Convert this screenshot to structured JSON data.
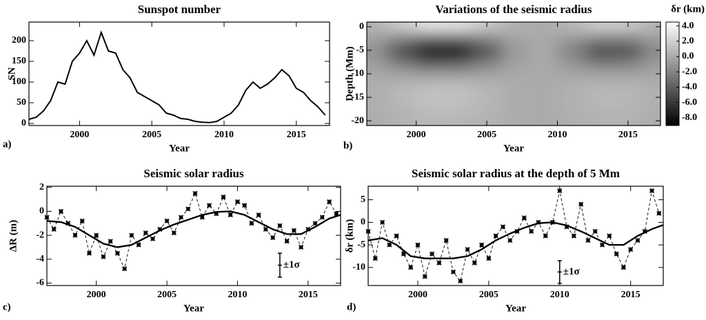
{
  "chart_data": [
    {
      "type": "line",
      "title": "Sunspot number",
      "panel_label": "a)",
      "xlabel": "Year",
      "ylabel": "SN",
      "xlim": [
        1996.5,
        2017.3
      ],
      "ylim": [
        -5,
        245
      ],
      "xticks": [
        2000,
        2005,
        2010,
        2015
      ],
      "yticks": [
        0,
        50,
        100,
        150,
        200
      ],
      "color": "#000000",
      "x": [
        1996.5,
        1997,
        1997.5,
        1998,
        1998.5,
        1999,
        1999.5,
        2000,
        2000.5,
        2001,
        2001.5,
        2002,
        2002.5,
        2003,
        2003.5,
        2004,
        2004.5,
        2005,
        2005.5,
        2006,
        2006.5,
        2007,
        2007.5,
        2008,
        2008.5,
        2009,
        2009.5,
        2010,
        2010.5,
        2011,
        2011.5,
        2012,
        2012.5,
        2013,
        2013.5,
        2014,
        2014.5,
        2015,
        2015.5,
        2016,
        2016.5,
        2017
      ],
      "values": [
        10,
        15,
        30,
        55,
        100,
        95,
        150,
        170,
        200,
        165,
        220,
        175,
        170,
        130,
        110,
        75,
        65,
        55,
        45,
        25,
        20,
        12,
        10,
        5,
        3,
        2,
        5,
        15,
        25,
        45,
        80,
        100,
        85,
        95,
        110,
        130,
        115,
        85,
        75,
        55,
        40,
        20
      ]
    },
    {
      "type": "heatmap",
      "title": "Variations of the seismic radius",
      "panel_label": "b)",
      "xlabel": "Year",
      "ylabel": "Depth (Mm)",
      "colorbar_label": "δr (km)",
      "colormap": "gray",
      "clim": [
        -9,
        4.5
      ],
      "colorbar_ticks": [
        {
          "value": 4,
          "label": "4.0"
        },
        {
          "value": 2,
          "label": "2.0"
        },
        {
          "value": 0,
          "label": "0.0"
        },
        {
          "value": -2,
          "label": "-2.0"
        },
        {
          "value": -4,
          "label": "-4.0"
        },
        {
          "value": -6,
          "label": "-6.0"
        },
        {
          "value": -8,
          "label": "-8.0"
        }
      ],
      "xlim": [
        1996.5,
        2017.3
      ],
      "ylim": [
        -21,
        1
      ],
      "xticks": [
        2000,
        2005,
        2010,
        2015
      ],
      "yticks": [
        0,
        -5,
        -10,
        -15,
        -20
      ],
      "x": [
        1997,
        1999,
        2001,
        2003,
        2005,
        2007,
        2009,
        2011,
        2013,
        2015,
        2017
      ],
      "y": [
        0,
        -2.5,
        -5,
        -7.5,
        -10,
        -12.5,
        -15,
        -17.5,
        -20
      ],
      "values": [
        [
          0.4,
          1.8,
          3.0,
          2.8,
          1.6,
          0.3,
          0,
          0.7,
          1.8,
          1.6,
          0.6
        ],
        [
          -0.5,
          -2.0,
          -3.4,
          -3.2,
          -1.9,
          -0.3,
          0,
          -0.9,
          -2.0,
          -1.9,
          -0.7
        ],
        [
          -1.3,
          -5.1,
          -8.5,
          -8.1,
          -4.7,
          -0.9,
          0,
          -2.1,
          -5.1,
          -4.7,
          -1.7
        ],
        [
          -0.7,
          -2.8,
          -4.7,
          -4.4,
          -2.6,
          -0.5,
          0,
          -1.2,
          -2.8,
          -2.6,
          -0.9
        ],
        [
          -0.1,
          -0.5,
          -0.9,
          -0.8,
          -0.5,
          -0.1,
          0,
          -0.2,
          -0.5,
          -0.5,
          -0.2
        ],
        [
          0.2,
          0.6,
          1.0,
          1.0,
          0.6,
          0.1,
          0,
          0.3,
          0.6,
          0.6,
          0.2
        ],
        [
          0.2,
          0.8,
          1.3,
          1.2,
          0.7,
          0.1,
          0,
          0.3,
          0.8,
          0.7,
          0.3
        ],
        [
          0.2,
          0.6,
          1.0,
          1.0,
          0.6,
          0.1,
          0,
          0.3,
          0.6,
          0.6,
          0.2
        ],
        [
          0.1,
          0.4,
          0.7,
          0.6,
          0.4,
          0.1,
          0,
          0.2,
          0.4,
          0.4,
          0.1
        ]
      ]
    },
    {
      "type": "scatter",
      "title": "Seismic solar radius",
      "panel_label": "c)",
      "xlabel": "Year",
      "ylabel": "ΔR (m)",
      "xlim": [
        1996.5,
        2017.3
      ],
      "ylim": [
        -6.2,
        2.1
      ],
      "xticks": [
        2000,
        2005,
        2010,
        2015
      ],
      "yticks": [
        -6,
        -4,
        -2,
        0,
        2
      ],
      "color": "#000000",
      "x": [
        1996.5,
        1997,
        1997.5,
        1998,
        1998.5,
        1999,
        1999.5,
        2000,
        2000.5,
        2001,
        2001.5,
        2002,
        2002.5,
        2003,
        2003.5,
        2004,
        2004.5,
        2005,
        2005.5,
        2006,
        2006.5,
        2007,
        2007.5,
        2008,
        2008.5,
        2009,
        2009.5,
        2010,
        2010.5,
        2011,
        2011.5,
        2012,
        2012.5,
        2013,
        2013.5,
        2014,
        2014.5,
        2015,
        2015.5,
        2016,
        2016.5,
        2017
      ],
      "values": [
        -0.5,
        -1.5,
        0,
        -1,
        -2,
        -0.8,
        -3.5,
        -2,
        -3.8,
        -2.5,
        -3.5,
        -4.8,
        -2,
        -2.8,
        -1.8,
        -2.3,
        -1.5,
        -0.8,
        -1.8,
        -0.5,
        0.2,
        1.5,
        -0.5,
        0.5,
        -0.2,
        1.2,
        -0.3,
        0.8,
        0.5,
        -1,
        -0.3,
        -1.5,
        -2.2,
        -1.2,
        -2.5,
        -1.6,
        -3,
        -1.5,
        -1,
        -0.5,
        0.8,
        -0.2
      ],
      "fit": {
        "x": [
          1996.5,
          1997.5,
          1998.5,
          1999.5,
          2000.5,
          2001.5,
          2002.5,
          2003.5,
          2004.5,
          2005.5,
          2006.5,
          2007.5,
          2008.5,
          2009.5,
          2010.5,
          2011.5,
          2012.5,
          2013.5,
          2014.5,
          2015.5,
          2016.5,
          2017.3
        ],
        "values": [
          -0.8,
          -0.9,
          -1.3,
          -2,
          -2.7,
          -3,
          -2.8,
          -2.2,
          -1.6,
          -1.1,
          -0.7,
          -0.3,
          -0.05,
          0,
          -0.3,
          -0.9,
          -1.5,
          -1.9,
          -1.9,
          -1.3,
          -0.6,
          -0.3
        ]
      },
      "errorbar": {
        "x": 2013,
        "y": -4.5,
        "error": 1,
        "label": "±1σ"
      }
    },
    {
      "type": "scatter",
      "title": "Seismic solar radius at the depth of 5 Mm",
      "panel_label": "d)",
      "xlabel": "Year",
      "ylabel": "δr (km)",
      "xlim": [
        1996.5,
        2017.3
      ],
      "ylim": [
        -14,
        8
      ],
      "xticks": [
        2000,
        2005,
        2010,
        2015
      ],
      "yticks": [
        -10,
        -5,
        0,
        5
      ],
      "color": "#000000",
      "x": [
        1996.5,
        1997,
        1997.5,
        1998,
        1998.5,
        1999,
        1999.5,
        2000,
        2000.5,
        2001,
        2001.5,
        2002,
        2002.5,
        2003,
        2003.5,
        2004,
        2004.5,
        2005,
        2005.5,
        2006,
        2006.5,
        2007,
        2007.5,
        2008,
        2008.5,
        2009,
        2009.5,
        2010,
        2010.5,
        2011,
        2011.5,
        2012,
        2012.5,
        2013,
        2013.5,
        2014,
        2014.5,
        2015,
        2015.5,
        2016,
        2016.5,
        2017
      ],
      "values": [
        -2,
        -8,
        0,
        -5,
        -3,
        -7,
        -10,
        -5,
        -12,
        -7,
        -9,
        -4,
        -11,
        -13,
        -6,
        -9,
        -5,
        -8,
        -3,
        -1,
        -4,
        -2,
        1,
        -2,
        0,
        -3,
        0,
        7,
        -1,
        -3,
        4,
        -4,
        -2,
        -5,
        -3,
        -7,
        -10,
        -6,
        -4,
        -2,
        7,
        2
      ],
      "fit": {
        "x": [
          1996.5,
          1997.5,
          1998.5,
          1999.5,
          2000.5,
          2001.5,
          2002.5,
          2003.5,
          2004.5,
          2005.5,
          2006.5,
          2007.5,
          2008.5,
          2009.5,
          2010.5,
          2011.5,
          2012.5,
          2013.5,
          2014.5,
          2015.5,
          2016.5,
          2017.3
        ],
        "values": [
          -4,
          -3.5,
          -5,
          -7.5,
          -8,
          -8,
          -8,
          -7.5,
          -6,
          -4,
          -2.5,
          -1.2,
          -0.2,
          0,
          -0.7,
          -2,
          -3.5,
          -5,
          -5,
          -3,
          -1.5,
          -0.6
        ]
      },
      "errorbar": {
        "x": 2010,
        "y": -11,
        "error": 2.5,
        "label": "±1σ"
      }
    }
  ]
}
